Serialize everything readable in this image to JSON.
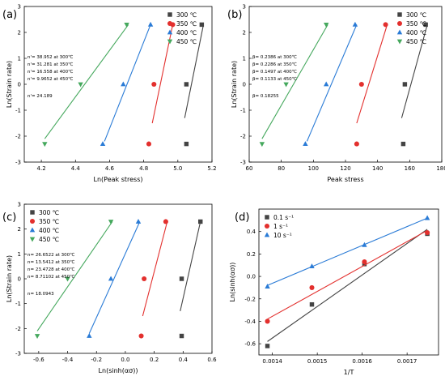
{
  "chart_data": [
    {
      "type": "scatter",
      "panel": "(a)",
      "xlabel": "Ln(Peak stress)",
      "ylabel": "Ln(Strain rate)",
      "xlim": [
        4.1,
        5.2
      ],
      "ylim": [
        -3,
        3
      ],
      "xticks": [
        "4.2",
        "4.4",
        "4.6",
        "4.8",
        "5.0",
        "5.2"
      ],
      "yticks": [
        "-3",
        "-2",
        "-1",
        "0",
        "1",
        "2",
        "3"
      ],
      "legend_position": "top-right",
      "series": [
        {
          "name": "300 ℃",
          "marker": "square",
          "color": "#444444",
          "x": [
            5.05,
            5.05,
            5.14
          ],
          "y": [
            -2.3,
            0.0,
            2.3
          ],
          "fit": [
            [
              5.04,
              -1.3
            ],
            [
              5.15,
              2.3
            ]
          ]
        },
        {
          "name": "350 ℃",
          "marker": "circle",
          "color": "#e3302e",
          "x": [
            4.83,
            4.86,
            4.97
          ],
          "y": [
            -2.3,
            0.0,
            2.3
          ],
          "fit": [
            [
              4.85,
              -1.5
            ],
            [
              4.97,
              2.3
            ]
          ]
        },
        {
          "name": "400 ℃",
          "marker": "triangle",
          "color": "#2a7bd6",
          "x": [
            4.56,
            4.68,
            4.84
          ],
          "y": [
            -2.3,
            0.0,
            2.3
          ],
          "fit": [
            [
              4.57,
              -2.2
            ],
            [
              4.84,
              2.3
            ]
          ]
        },
        {
          "name": "450 ℃",
          "marker": "triangle-down",
          "color": "#45a85d",
          "x": [
            4.22,
            4.43,
            4.7
          ],
          "y": [
            -2.3,
            0.0,
            2.3
          ],
          "fit": [
            [
              4.22,
              -2.1
            ],
            [
              4.71,
              2.3
            ]
          ]
        }
      ],
      "annotations": [
        "n'= 38.952 at 300℃",
        "n'= 31.281 at 350℃",
        "n'= 16.558 at 400℃",
        "n'= 9.9652 at 450℃",
        "n'= 24.189"
      ]
    },
    {
      "type": "scatter",
      "panel": "(b)",
      "xlabel": "Peak stress",
      "ylabel": "Ln(Strain rate)",
      "xlim": [
        60,
        180
      ],
      "ylim": [
        -3,
        3
      ],
      "xticks": [
        "60",
        "80",
        "100",
        "120",
        "140",
        "160",
        "180"
      ],
      "yticks": [
        "-3",
        "-2",
        "-1",
        "0",
        "1",
        "2",
        "3"
      ],
      "legend_position": "top-right",
      "series": [
        {
          "name": "300 ℃",
          "marker": "square",
          "color": "#444444",
          "x": [
            156,
            157,
            170
          ],
          "y": [
            -2.3,
            0.0,
            2.3
          ],
          "fit": [
            [
              155,
              -1.3
            ],
            [
              171,
              2.3
            ]
          ]
        },
        {
          "name": "350 ℃",
          "marker": "circle",
          "color": "#e3302e",
          "x": [
            127,
            130,
            145
          ],
          "y": [
            -2.3,
            0.0,
            2.3
          ],
          "fit": [
            [
              127,
              -1.5
            ],
            [
              146,
              2.3
            ]
          ]
        },
        {
          "name": "400 ℃",
          "marker": "triangle",
          "color": "#2a7bd6",
          "x": [
            95,
            108,
            126
          ],
          "y": [
            -2.3,
            0.0,
            2.3
          ],
          "fit": [
            [
              96,
              -2.2
            ],
            [
              127,
              2.3
            ]
          ]
        },
        {
          "name": "450 ℃",
          "marker": "triangle-down",
          "color": "#45a85d",
          "x": [
            68,
            83,
            108
          ],
          "y": [
            -2.3,
            0.0,
            2.3
          ],
          "fit": [
            [
              68,
              -2.1
            ],
            [
              109,
              2.3
            ]
          ]
        }
      ],
      "annotations": [
        "β= 0.2386 at 300℃",
        "β= 0.2286 at 350℃",
        "β= 0.1497 at 400℃",
        "β= 0.1133 at 450℃",
        "β= 0.18255"
      ]
    },
    {
      "type": "scatter",
      "panel": "(c)",
      "xlabel": "Ln(sinh(ασ))",
      "ylabel": "Ln(Strain rate)",
      "xlim": [
        -0.7,
        0.6
      ],
      "ylim": [
        -3,
        3
      ],
      "xticks": [
        "-0.6",
        "-0.4",
        "-0.2",
        "0.0",
        "0.2",
        "0.4",
        "0.6"
      ],
      "yticks": [
        "-3",
        "-2",
        "-1",
        "0",
        "1",
        "2",
        "3"
      ],
      "legend_position": "top-left",
      "series": [
        {
          "name": "300 ℃",
          "marker": "square",
          "color": "#444444",
          "x": [
            0.39,
            0.39,
            0.52
          ],
          "y": [
            -2.3,
            0.0,
            2.3
          ],
          "fit": [
            [
              0.38,
              -1.3
            ],
            [
              0.52,
              2.3
            ]
          ]
        },
        {
          "name": "350 ℃",
          "marker": "circle",
          "color": "#e3302e",
          "x": [
            0.11,
            0.13,
            0.28
          ],
          "y": [
            -2.3,
            0.0,
            2.3
          ],
          "fit": [
            [
              0.12,
              -1.5
            ],
            [
              0.29,
              2.3
            ]
          ]
        },
        {
          "name": "400 ℃",
          "marker": "triangle",
          "color": "#2a7bd6",
          "x": [
            -0.25,
            -0.1,
            0.09
          ],
          "y": [
            -2.3,
            0.0,
            2.3
          ],
          "fit": [
            [
              -0.25,
              -2.2
            ],
            [
              0.1,
              2.3
            ]
          ]
        },
        {
          "name": "450 ℃",
          "marker": "triangle-down",
          "color": "#45a85d",
          "x": [
            -0.61,
            -0.4,
            -0.1
          ],
          "y": [
            -2.3,
            0.0,
            2.3
          ],
          "fit": [
            [
              -0.61,
              -2.1
            ],
            [
              -0.09,
              2.3
            ]
          ]
        }
      ],
      "annotations": [
        "n= 26.6522 at 300℃",
        "n= 13.5412 at 350℃",
        "n= 23.4728 at 400℃",
        "n= 8.71102 at 450℃",
        "n= 18.0943"
      ]
    },
    {
      "type": "scatter",
      "panel": "(d)",
      "xlabel": "1/T",
      "ylabel": "Ln(sinh(ασ))",
      "xlim": [
        0.00137,
        0.00177
      ],
      "ylim": [
        -0.7,
        0.6
      ],
      "xticks": [
        "0.0014",
        "0.0015",
        "0.0016",
        "0.0017"
      ],
      "xtick_values": [
        0.0014,
        0.0015,
        0.0016,
        0.0017
      ],
      "yticks": [
        "-0.6",
        "-0.4",
        "-0.2",
        "0.0",
        "0.2",
        "0.4"
      ],
      "ytick_values": [
        -0.6,
        -0.4,
        -0.2,
        0.0,
        0.2,
        0.4
      ],
      "legend_position": "top-left",
      "series": [
        {
          "name": "0.1 s⁻¹",
          "marker": "square",
          "color": "#444444",
          "x": [
            0.001389,
            0.001488,
            0.001605,
            0.001745
          ],
          "y": [
            -0.62,
            -0.25,
            0.11,
            0.38
          ],
          "fit": [
            [
              0.001389,
              -0.58
            ],
            [
              0.001745,
              0.42
            ]
          ]
        },
        {
          "name": "1 s⁻¹",
          "marker": "circle",
          "color": "#e3302e",
          "x": [
            0.001389,
            0.001488,
            0.001605,
            0.001745
          ],
          "y": [
            -0.4,
            -0.1,
            0.13,
            0.39
          ],
          "fit": [
            [
              0.001389,
              -0.38
            ],
            [
              0.001745,
              0.41
            ]
          ]
        },
        {
          "name": "10 s⁻¹",
          "marker": "triangle",
          "color": "#2a7bd6",
          "x": [
            0.001389,
            0.001488,
            0.001605,
            0.001745
          ],
          "y": [
            -0.09,
            0.09,
            0.28,
            0.52
          ],
          "fit": [
            [
              0.001389,
              -0.08
            ],
            [
              0.001745,
              0.52
            ]
          ]
        }
      ]
    }
  ]
}
